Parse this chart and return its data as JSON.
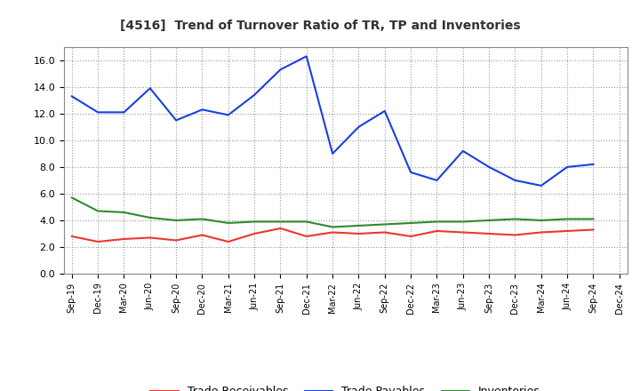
{
  "title": "[4516]  Trend of Turnover Ratio of TR, TP and Inventories",
  "x_labels": [
    "Sep-19",
    "Dec-19",
    "Mar-20",
    "Jun-20",
    "Sep-20",
    "Dec-20",
    "Mar-21",
    "Jun-21",
    "Sep-21",
    "Dec-21",
    "Mar-22",
    "Jun-22",
    "Sep-22",
    "Dec-22",
    "Mar-23",
    "Jun-23",
    "Sep-23",
    "Dec-23",
    "Mar-24",
    "Jun-24",
    "Sep-24",
    "Dec-24"
  ],
  "trade_receivables": [
    2.8,
    2.4,
    2.6,
    2.7,
    2.5,
    2.9,
    2.4,
    3.0,
    3.4,
    2.8,
    3.1,
    3.0,
    3.1,
    2.8,
    3.2,
    3.1,
    3.0,
    2.9,
    3.1,
    3.2,
    3.3,
    null
  ],
  "trade_payables": [
    13.3,
    12.1,
    12.1,
    13.9,
    11.5,
    12.3,
    11.9,
    13.4,
    15.3,
    16.3,
    9.0,
    11.0,
    12.2,
    7.6,
    7.0,
    9.2,
    8.0,
    7.0,
    6.6,
    8.0,
    8.2,
    null
  ],
  "inventories": [
    5.7,
    4.7,
    4.6,
    4.2,
    4.0,
    4.1,
    3.8,
    3.9,
    3.9,
    3.9,
    3.5,
    3.6,
    3.7,
    3.8,
    3.9,
    3.9,
    4.0,
    4.1,
    4.0,
    4.1,
    4.1,
    null
  ],
  "color_tr": "#e8382f",
  "color_tp": "#1a3fe0",
  "color_inv": "#2e8b2e",
  "ylim": [
    0.0,
    17.0
  ],
  "yticks": [
    0.0,
    2.0,
    4.0,
    6.0,
    8.0,
    10.0,
    12.0,
    14.0,
    16.0
  ],
  "legend_labels": [
    "Trade Receivables",
    "Trade Payables",
    "Inventories"
  ],
  "bg_color": "#ffffff",
  "plot_bg_color": "#ffffff",
  "title_color": "#333333"
}
